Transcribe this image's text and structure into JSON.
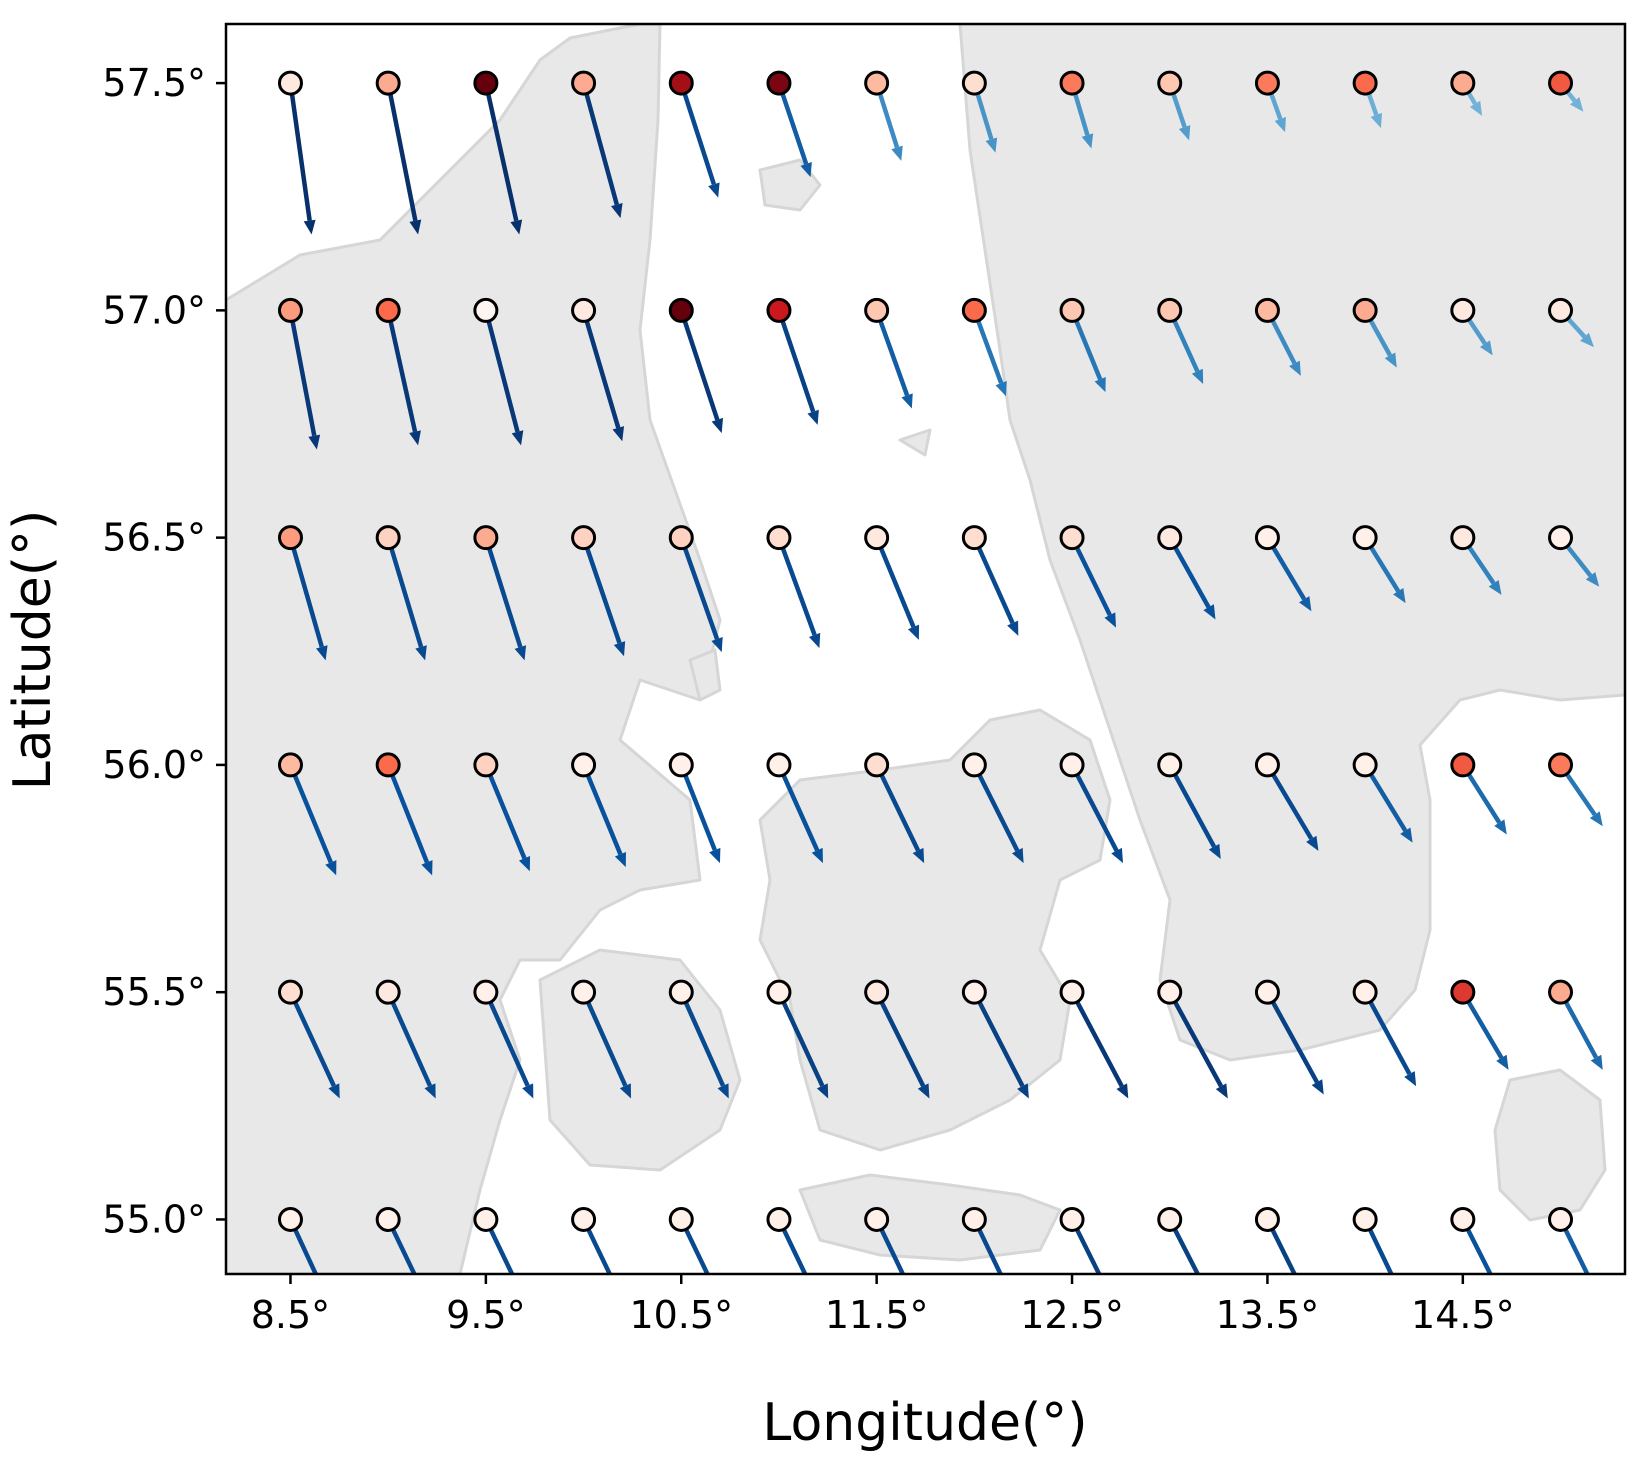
{
  "chart_data": {
    "type": "scatter",
    "xlabel": "Longitude(°)",
    "ylabel": "Latitude(°)",
    "x_ticks": [
      "8.5°",
      "9.5°",
      "10.5°",
      "11.5°",
      "12.5°",
      "13.5°",
      "14.5°"
    ],
    "y_ticks": [
      "55.0°",
      "55.5°",
      "56.0°",
      "56.5°",
      "57.0°",
      "57.5°"
    ],
    "xlim": [
      8.17,
      15.33
    ],
    "ylim": [
      54.88,
      57.63
    ],
    "background": "land map (light gray) of Denmark / southern Sweden region",
    "grid": false,
    "marker_colormap": "Reds",
    "arrow_colormap": "Blues",
    "grid_x": [
      8.5,
      9.0,
      9.5,
      10.0,
      10.5,
      11.0,
      11.5,
      12.0,
      12.5,
      13.0,
      13.5,
      14.0,
      14.5,
      15.0
    ],
    "grid_y": [
      57.5,
      57.0,
      56.5,
      56.0,
      55.5,
      55.0
    ],
    "point_intensity": [
      [
        0.05,
        0.3,
        1.0,
        0.3,
        0.85,
        0.95,
        0.25,
        0.1,
        0.45,
        0.2,
        0.45,
        0.5,
        0.3,
        0.55
      ],
      [
        0.35,
        0.5,
        0.0,
        0.05,
        1.0,
        0.75,
        0.2,
        0.5,
        0.2,
        0.2,
        0.25,
        0.3,
        0.05,
        0.05
      ],
      [
        0.35,
        0.15,
        0.3,
        0.15,
        0.15,
        0.1,
        0.05,
        0.1,
        0.1,
        0.05,
        0.02,
        0.02,
        0.05,
        0.02
      ],
      [
        0.25,
        0.5,
        0.15,
        0.02,
        0.02,
        0.02,
        0.1,
        0.02,
        0.02,
        0.02,
        0.02,
        0.02,
        0.55,
        0.45
      ],
      [
        0.1,
        0.05,
        0.02,
        0.02,
        0.02,
        0.02,
        0.05,
        0.02,
        0.02,
        0.02,
        0.02,
        0.02,
        0.65,
        0.3
      ],
      [
        0.02,
        0.02,
        0.02,
        0.02,
        0.02,
        0.02,
        0.02,
        0.02,
        0.02,
        0.02,
        0.02,
        0.02,
        0.02,
        0.02
      ]
    ],
    "arrow_u": [
      [
        0.12,
        0.17,
        0.19,
        0.21,
        0.21,
        0.18,
        0.14,
        0.12,
        0.11,
        0.11,
        0.1,
        0.09,
        0.11,
        0.13
      ],
      [
        0.15,
        0.17,
        0.2,
        0.22,
        0.23,
        0.22,
        0.2,
        0.18,
        0.19,
        0.19,
        0.19,
        0.18,
        0.17,
        0.19
      ],
      [
        0.2,
        0.21,
        0.22,
        0.23,
        0.23,
        0.23,
        0.24,
        0.25,
        0.25,
        0.26,
        0.25,
        0.23,
        0.22,
        0.22
      ],
      [
        0.26,
        0.25,
        0.25,
        0.24,
        0.22,
        0.25,
        0.27,
        0.28,
        0.29,
        0.29,
        0.29,
        0.27,
        0.25,
        0.24
      ],
      [
        0.28,
        0.27,
        0.27,
        0.27,
        0.27,
        0.28,
        0.3,
        0.31,
        0.32,
        0.33,
        0.32,
        0.29,
        0.26,
        0.24
      ],
      [
        0.28,
        0.29,
        0.29,
        0.29,
        0.29,
        0.29,
        0.29,
        0.29,
        0.3,
        0.31,
        0.3,
        0.29,
        0.27,
        0.24
      ]
    ],
    "arrow_v": [
      [
        -0.37,
        -0.37,
        -0.37,
        -0.33,
        -0.28,
        -0.23,
        -0.19,
        -0.17,
        -0.16,
        -0.14,
        -0.12,
        -0.11,
        -0.08,
        -0.07
      ],
      [
        -0.34,
        -0.33,
        -0.33,
        -0.32,
        -0.3,
        -0.28,
        -0.24,
        -0.21,
        -0.2,
        -0.18,
        -0.16,
        -0.14,
        -0.11,
        -0.09
      ],
      [
        -0.3,
        -0.3,
        -0.3,
        -0.29,
        -0.28,
        -0.27,
        -0.25,
        -0.24,
        -0.22,
        -0.2,
        -0.18,
        -0.16,
        -0.14,
        -0.12
      ],
      [
        -0.27,
        -0.27,
        -0.26,
        -0.25,
        -0.24,
        -0.24,
        -0.24,
        -0.24,
        -0.24,
        -0.23,
        -0.21,
        -0.19,
        -0.17,
        -0.15
      ],
      [
        -0.26,
        -0.26,
        -0.26,
        -0.26,
        -0.26,
        -0.26,
        -0.26,
        -0.26,
        -0.26,
        -0.26,
        -0.25,
        -0.23,
        -0.19,
        -0.19
      ],
      [
        -0.26,
        -0.26,
        -0.26,
        -0.26,
        -0.26,
        -0.26,
        -0.26,
        -0.26,
        -0.26,
        -0.26,
        -0.26,
        -0.26,
        -0.23,
        -0.21
      ]
    ],
    "arrow_speed": [
      [
        1.0,
        1.0,
        1.0,
        0.95,
        0.85,
        0.75,
        0.55,
        0.5,
        0.5,
        0.45,
        0.4,
        0.35,
        0.3,
        0.3
      ],
      [
        0.95,
        0.95,
        0.95,
        0.95,
        0.95,
        0.9,
        0.75,
        0.65,
        0.65,
        0.6,
        0.55,
        0.5,
        0.45,
        0.4
      ],
      [
        0.85,
        0.85,
        0.85,
        0.85,
        0.85,
        0.85,
        0.85,
        0.85,
        0.8,
        0.8,
        0.75,
        0.65,
        0.6,
        0.55
      ],
      [
        0.8,
        0.8,
        0.8,
        0.8,
        0.8,
        0.8,
        0.85,
        0.85,
        0.85,
        0.85,
        0.85,
        0.75,
        0.7,
        0.65
      ],
      [
        0.85,
        0.85,
        0.85,
        0.85,
        0.85,
        0.9,
        0.9,
        0.9,
        0.95,
        0.95,
        0.9,
        0.85,
        0.75,
        0.7
      ],
      [
        0.85,
        0.85,
        0.85,
        0.85,
        0.85,
        0.85,
        0.85,
        0.85,
        0.9,
        0.9,
        0.9,
        0.85,
        0.8,
        0.75
      ]
    ]
  }
}
